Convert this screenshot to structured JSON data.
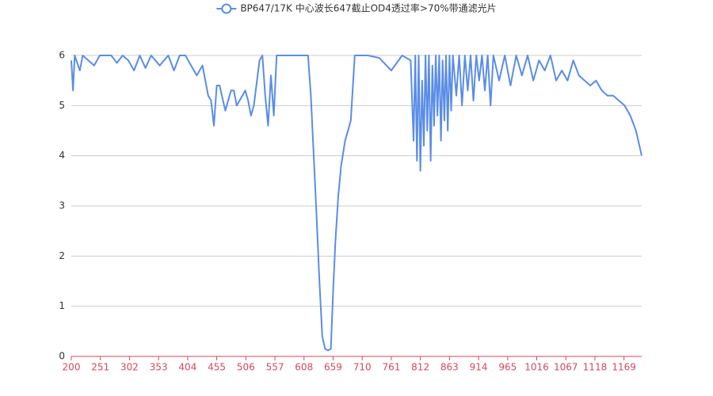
{
  "chart_data": {
    "type": "line",
    "x": [
      200,
      203,
      206,
      215,
      220,
      240,
      250,
      270,
      280,
      290,
      300,
      310,
      320,
      330,
      340,
      355,
      370,
      380,
      390,
      400,
      410,
      420,
      430,
      440,
      445,
      450,
      455,
      460,
      470,
      480,
      485,
      490,
      500,
      505,
      510,
      515,
      520,
      530,
      535,
      540,
      545,
      550,
      555,
      560,
      600,
      615,
      620,
      625,
      630,
      635,
      640,
      645,
      650,
      655,
      659,
      663,
      668,
      673,
      680,
      690,
      697,
      720,
      740,
      761,
      780,
      795,
      800,
      803,
      806,
      809,
      812,
      815,
      818,
      821,
      824,
      827,
      830,
      833,
      836,
      839,
      842,
      845,
      848,
      851,
      854,
      857,
      860,
      863,
      866,
      869,
      875,
      880,
      885,
      890,
      895,
      900,
      905,
      910,
      915,
      920,
      925,
      930,
      935,
      940,
      950,
      960,
      970,
      980,
      990,
      1000,
      1010,
      1020,
      1030,
      1040,
      1050,
      1060,
      1070,
      1080,
      1090,
      1100,
      1110,
      1120,
      1130,
      1140,
      1150,
      1160,
      1170,
      1180,
      1190,
      1200
    ],
    "series": [
      {
        "name": "BP647/17K 中心波长647截止OD4透过率>70%带通滤光片",
        "color": "#5a8de8",
        "values": [
          5.9,
          5.3,
          6,
          5.7,
          6,
          5.8,
          6,
          6,
          5.85,
          6,
          5.9,
          5.7,
          6,
          5.75,
          6,
          5.8,
          6,
          5.7,
          6,
          6,
          5.8,
          5.6,
          5.8,
          5.2,
          5.1,
          4.6,
          5.4,
          5.4,
          4.9,
          5.3,
          5.3,
          5.0,
          5.2,
          5.3,
          5.1,
          4.8,
          5.0,
          5.9,
          6,
          5.2,
          4.6,
          5.6,
          4.8,
          6,
          6,
          6,
          5.2,
          4.0,
          2.8,
          1.5,
          0.4,
          0.15,
          0.12,
          0.15,
          1.3,
          2.3,
          3.2,
          3.8,
          4.3,
          4.7,
          6,
          6,
          5.95,
          5.7,
          6,
          5.9,
          4.3,
          6,
          3.9,
          6,
          3.7,
          5.5,
          4.2,
          6,
          4.5,
          6,
          3.9,
          5.8,
          4.6,
          6,
          4.8,
          6,
          4.3,
          5.9,
          4.7,
          6,
          4.5,
          6,
          4.9,
          6,
          5.2,
          6,
          5.0,
          6,
          5.3,
          6,
          5.1,
          6,
          5.5,
          6,
          5.3,
          6,
          5.0,
          6,
          5.5,
          6,
          5.4,
          6,
          5.6,
          6,
          5.5,
          5.9,
          5.7,
          6,
          5.5,
          5.7,
          5.5,
          5.9,
          5.6,
          5.5,
          5.4,
          5.5,
          5.3,
          5.2,
          5.2,
          5.1,
          5.0,
          4.8,
          4.5,
          4.0
        ]
      }
    ],
    "xlim": [
      200,
      1200
    ],
    "xticks": [
      200,
      251,
      302,
      353,
      404,
      455,
      506,
      557,
      608,
      659,
      710,
      761,
      812,
      863,
      914,
      965,
      1016,
      1067,
      1118,
      1169
    ],
    "ylim": [
      0,
      6
    ],
    "yticks": [
      0,
      1,
      2,
      3,
      4,
      5,
      6
    ],
    "grid": true,
    "x_label_color": "#d14a61",
    "legend": "top"
  }
}
